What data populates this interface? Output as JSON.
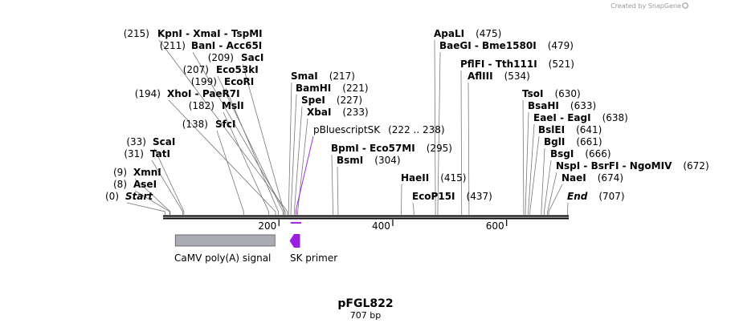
{
  "credit": "Created by SnapGene",
  "map": {
    "name": "pFGL822",
    "size_label": "707 bp",
    "length_bp": 707
  },
  "ticks": [
    {
      "bp": 200,
      "label": "200"
    },
    {
      "bp": 400,
      "label": "400"
    },
    {
      "bp": 600,
      "label": "600"
    }
  ],
  "sites": [
    {
      "name": "KpnI",
      "pos": "(215)",
      "bp": 215,
      "text": "KpnI  - XmaI  - TspMI"
    },
    {
      "name": "BanI",
      "pos": "(211)",
      "bp": 211,
      "text": "BanI  - Acc65I"
    },
    {
      "name": "SacI",
      "pos": "(209)",
      "bp": 209,
      "text": "SacI"
    },
    {
      "name": "Eco53kI",
      "pos": "(207)",
      "bp": 207,
      "text": "Eco53kI"
    },
    {
      "name": "EcoRI",
      "pos": "(199)",
      "bp": 199,
      "text": "EcoRI"
    },
    {
      "name": "XhoI",
      "pos": "(194)",
      "bp": 194,
      "text": "XhoI  - PaeR7I"
    },
    {
      "name": "MslI",
      "pos": "(182)",
      "bp": 182,
      "text": "MslI"
    },
    {
      "name": "SfcI",
      "pos": "(138)",
      "bp": 138,
      "text": "SfcI"
    },
    {
      "name": "ScaI",
      "pos": "(33)",
      "bp": 33,
      "text": "ScaI"
    },
    {
      "name": "TatI",
      "pos": "(31)",
      "bp": 31,
      "text": "TatI"
    },
    {
      "name": "XmnI",
      "pos": "(9)",
      "bp": 9,
      "text": "XmnI"
    },
    {
      "name": "AseI",
      "pos": "(8)",
      "bp": 8,
      "text": "AseI"
    },
    {
      "name": "Start",
      "pos": "(0)",
      "bp": 0,
      "text": "Start"
    },
    {
      "name": "SmaI",
      "pos": "(217)",
      "bp": 217,
      "text": "SmaI"
    },
    {
      "name": "BamHI",
      "pos": "(221)",
      "bp": 221,
      "text": "BamHI"
    },
    {
      "name": "SpeI",
      "pos": "(227)",
      "bp": 227,
      "text": "SpeI"
    },
    {
      "name": "XbaI",
      "pos": "(233)",
      "bp": 233,
      "text": "XbaI"
    },
    {
      "name": "BpmI",
      "pos": "(295)",
      "bp": 295,
      "text": "BpmI  - Eco57MI"
    },
    {
      "name": "BsmI",
      "pos": "(304)",
      "bp": 304,
      "text": "BsmI"
    },
    {
      "name": "ApaLI",
      "pos": "(475)",
      "bp": 475,
      "text": "ApaLI"
    },
    {
      "name": "BaeGI",
      "pos": "(479)",
      "bp": 479,
      "text": "BaeGI  - Bme1580I"
    },
    {
      "name": "PflFI",
      "pos": "(521)",
      "bp": 521,
      "text": "PflFI  - Tth111I"
    },
    {
      "name": "AflIII",
      "pos": "(534)",
      "bp": 534,
      "text": "AflIII"
    },
    {
      "name": "HaeII",
      "pos": "(415)",
      "bp": 415,
      "text": "HaeII"
    },
    {
      "name": "EcoP15I",
      "pos": "(437)",
      "bp": 437,
      "text": "EcoP15I"
    },
    {
      "name": "TsoI",
      "pos": "(630)",
      "bp": 630,
      "text": "TsoI"
    },
    {
      "name": "BsaHI",
      "pos": "(633)",
      "bp": 633,
      "text": "BsaHI"
    },
    {
      "name": "EaeI",
      "pos": "(638)",
      "bp": 638,
      "text": "EaeI  - EagI"
    },
    {
      "name": "BslEI",
      "pos": "(641)",
      "bp": 641,
      "text": "BslEI"
    },
    {
      "name": "BglI",
      "pos": "(661)",
      "bp": 661,
      "text": "BglI"
    },
    {
      "name": "BsgI",
      "pos": "(666)",
      "bp": 666,
      "text": "BsgI"
    },
    {
      "name": "NspI",
      "pos": "(672)",
      "bp": 672,
      "text": "NspI  - BsrFI  - NgoMIV"
    },
    {
      "name": "NaeI",
      "pos": "(674)",
      "bp": 674,
      "text": "NaeI"
    },
    {
      "name": "End",
      "pos": "(707)",
      "bp": 707,
      "text": "End"
    }
  ],
  "region": {
    "name": "pBluescriptSK",
    "range": "(222 .. 238)",
    "start_bp": 222,
    "end_bp": 238,
    "color": "#a12bd9"
  },
  "features": [
    {
      "name": "CaMV poly(A) signal",
      "start_bp": 18,
      "end_bp": 193,
      "color": "#a9adb3"
    },
    {
      "name": "SK primer",
      "start_bp": 222,
      "end_bp": 238,
      "color": "#9a1fe0"
    }
  ]
}
